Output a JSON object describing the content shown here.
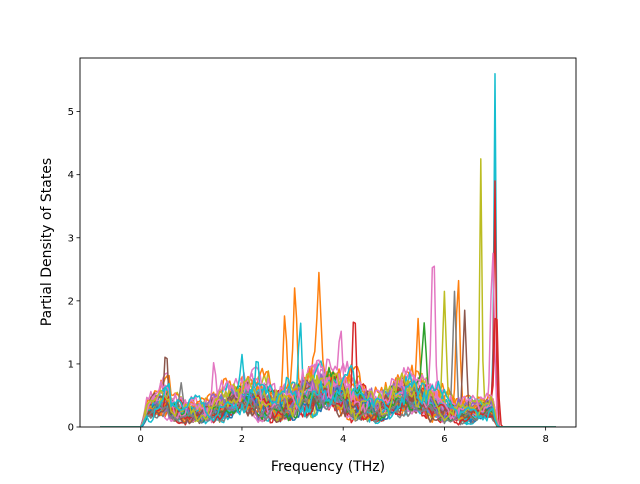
{
  "chart_data": {
    "type": "line",
    "title": "",
    "xlabel": "Frequency (THz)",
    "ylabel": "Partial Density of States",
    "xlim": [
      -1.2,
      8.6
    ],
    "ylim": [
      0,
      5.85
    ],
    "xticks": [
      0,
      2,
      4,
      6,
      8
    ],
    "yticks": [
      0,
      1,
      2,
      3,
      4,
      5
    ],
    "xtick_labels": [
      "0",
      "2",
      "4",
      "6",
      "8"
    ],
    "ytick_labels": [
      "0",
      "1",
      "2",
      "3",
      "4",
      "5"
    ],
    "grid": false,
    "legend": "none",
    "palette": [
      "#1f77b4",
      "#ff7f0e",
      "#2ca02c",
      "#d62728",
      "#9467bd",
      "#8c564b",
      "#e377c2",
      "#7f7f7f",
      "#bcbd22",
      "#17becf"
    ],
    "x_domain": [
      -0.8,
      8.2
    ],
    "nonzero_range": [
      0.0,
      7.05
    ],
    "series_count": 40,
    "notable_peaks": [
      {
        "x": 7.0,
        "y": 5.6,
        "color": "#17becf"
      },
      {
        "x": 6.72,
        "y": 4.25,
        "color": "#bcbd22"
      },
      {
        "x": 7.0,
        "y": 3.9,
        "color": "#d62728"
      },
      {
        "x": 6.95,
        "y": 2.85,
        "color": "#e377c2"
      },
      {
        "x": 5.78,
        "y": 2.9,
        "color": "#e377c2"
      },
      {
        "x": 3.52,
        "y": 2.45,
        "color": "#ff7f0e"
      },
      {
        "x": 3.05,
        "y": 2.27,
        "color": "#ff7f0e"
      },
      {
        "x": 6.27,
        "y": 2.4,
        "color": "#ff7f0e"
      },
      {
        "x": 6.0,
        "y": 2.15,
        "color": "#bcbd22"
      },
      {
        "x": 6.2,
        "y": 2.15,
        "color": "#7f7f7f"
      },
      {
        "x": 7.02,
        "y": 2.0,
        "color": "#d62728"
      },
      {
        "x": 4.22,
        "y": 1.9,
        "color": "#d62728"
      },
      {
        "x": 2.85,
        "y": 1.82,
        "color": "#ff7f0e"
      },
      {
        "x": 5.48,
        "y": 1.72,
        "color": "#ff7f0e"
      },
      {
        "x": 5.6,
        "y": 1.65,
        "color": "#2ca02c"
      },
      {
        "x": 3.15,
        "y": 1.7,
        "color": "#17becf"
      },
      {
        "x": 3.95,
        "y": 1.55,
        "color": "#e377c2"
      },
      {
        "x": 6.4,
        "y": 1.85,
        "color": "#8c564b"
      },
      {
        "x": 0.5,
        "y": 1.25,
        "color": "#8c564b"
      },
      {
        "x": 1.45,
        "y": 1.05,
        "color": "#e377c2"
      },
      {
        "x": 2.0,
        "y": 1.15,
        "color": "#17becf"
      },
      {
        "x": 2.3,
        "y": 1.15,
        "color": "#17becf"
      },
      {
        "x": 0.8,
        "y": 0.7,
        "color": "#7f7f7f"
      }
    ]
  }
}
